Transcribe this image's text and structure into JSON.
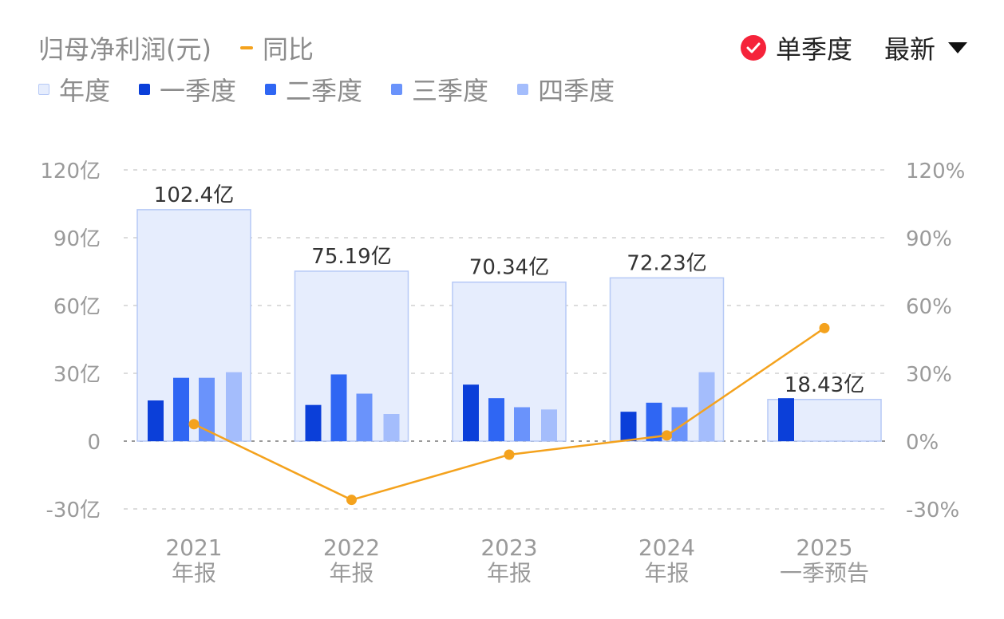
{
  "header": {
    "title": "归母净利润(元)",
    "yoy_label": "同比",
    "single_quarter_label": "单季度",
    "latest_label": "最新"
  },
  "legend": [
    {
      "label": "年度",
      "color": "#e6edfd"
    },
    {
      "label": "一季度",
      "color": "#0b3fd9"
    },
    {
      "label": "二季度",
      "color": "#2f66f3"
    },
    {
      "label": "三季度",
      "color": "#6a93fb"
    },
    {
      "label": "四季度",
      "color": "#a4bdfc"
    }
  ],
  "colors": {
    "annual_fill": "#e6edfd",
    "annual_stroke": "#b6c9f6",
    "yoy_line": "#f4a21d",
    "grid": "#dcdcdc",
    "zero_line": "#9a9a9a",
    "axis_text": "#9a9a9a",
    "label_text": "#333333",
    "check_red": "#f5233a"
  },
  "chart_data": {
    "type": "bar",
    "categories": [
      [
        "2021",
        "年报"
      ],
      [
        "2022",
        "年报"
      ],
      [
        "2023",
        "年报"
      ],
      [
        "2024",
        "年报"
      ],
      [
        "2025",
        "一季预告"
      ]
    ],
    "annual": {
      "name": "年度",
      "values": [
        102.4,
        75.19,
        70.34,
        72.23,
        18.43
      ],
      "labels": [
        "102.4亿",
        "75.19亿",
        "70.34亿",
        "72.23亿",
        "18.43亿"
      ]
    },
    "quarters": [
      {
        "name": "一季度",
        "values": [
          18,
          16,
          25,
          13,
          19
        ]
      },
      {
        "name": "二季度",
        "values": [
          28,
          29.5,
          19,
          17,
          null
        ]
      },
      {
        "name": "三季度",
        "values": [
          28,
          21,
          15,
          15,
          null
        ]
      },
      {
        "name": "四季度",
        "values": [
          30.5,
          12,
          14,
          30.5,
          null
        ]
      }
    ],
    "yoy": {
      "name": "同比",
      "values": [
        7.5,
        -26,
        -6,
        2.5,
        50
      ]
    },
    "left_axis": {
      "ylim": [
        -30,
        120
      ],
      "ticks": [
        120,
        90,
        60,
        30,
        0,
        -30
      ],
      "tick_labels": [
        "120亿",
        "90亿",
        "60亿",
        "30亿",
        "0",
        "-30亿"
      ]
    },
    "right_axis": {
      "ylim": [
        -30,
        120
      ],
      "ticks": [
        120,
        90,
        60,
        30,
        0,
        -30
      ],
      "tick_labels": [
        "120%",
        "90%",
        "60%",
        "30%",
        "0%",
        "-30%"
      ]
    },
    "grid": true
  }
}
